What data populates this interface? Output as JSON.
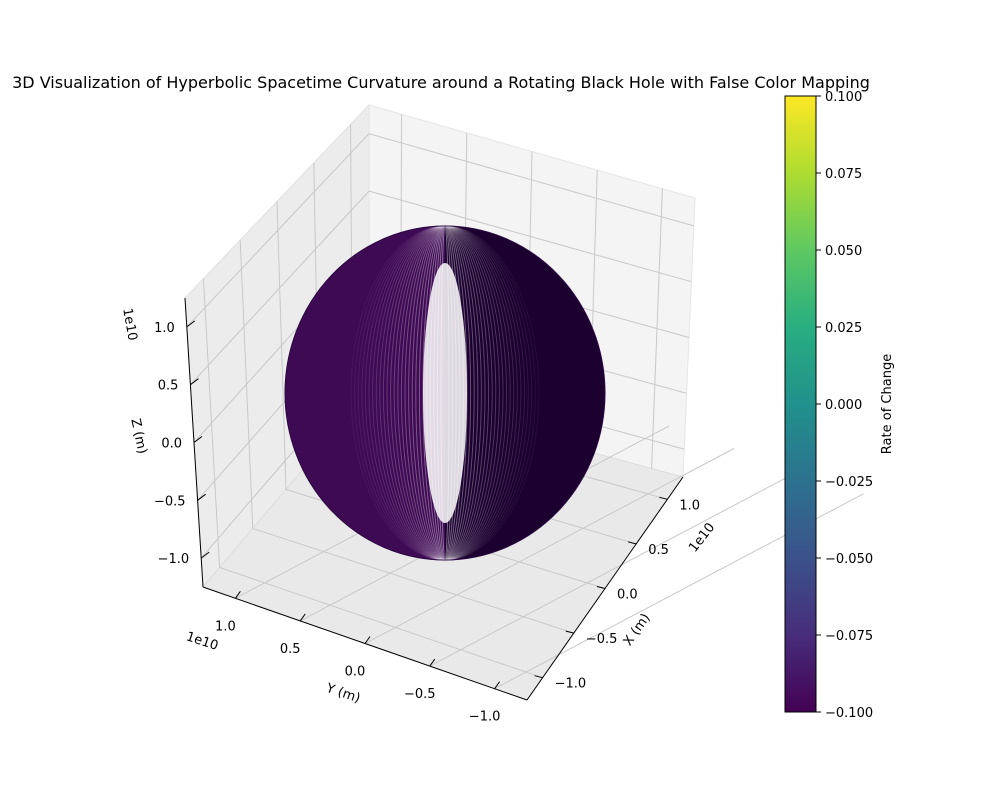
{
  "chart_data": {
    "type": "surface3d",
    "title": "3D Visualization of Hyperbolic Spacetime Curvature around a Rotating Black Hole with False Color Mapping",
    "x_axis": {
      "label": "X (m)",
      "offset_text": "1e10",
      "ticks": [
        "−1.0",
        "−0.5",
        "0.0",
        "0.5",
        "1.0"
      ],
      "values": [
        -1.0,
        -0.5,
        0.0,
        0.5,
        1.0
      ]
    },
    "y_axis": {
      "label": "Y (m)",
      "offset_text": "1e10",
      "ticks": [
        "1.0",
        "0.5",
        "0.0",
        "−0.5",
        "−1.0"
      ],
      "values": [
        1.0,
        0.5,
        0.0,
        -0.5,
        -1.0
      ]
    },
    "z_axis": {
      "label": "Z (m)",
      "offset_text": "1e10",
      "ticks": [
        "1.0",
        "0.5",
        "0.0",
        "−0.5",
        "−1.0"
      ],
      "values": [
        1.0,
        0.5,
        0.0,
        -0.5,
        -1.0
      ]
    },
    "surface": {
      "shape": "sphere",
      "radius": 1.0,
      "color_left": "#3f0a54",
      "color_right": "#1c0030",
      "edge_color": "#2a0740"
    },
    "colorbar": {
      "label": "Rate of Change",
      "colormap": "viridis",
      "ticks": [
        "0.100",
        "0.075",
        "0.050",
        "0.025",
        "0.000",
        "−0.025",
        "−0.050",
        "−0.075",
        "−0.100"
      ],
      "values": [
        0.1,
        0.075,
        0.05,
        0.025,
        0.0,
        -0.025,
        -0.05,
        -0.075,
        -0.1
      ],
      "range": [
        -0.1,
        0.1
      ]
    },
    "grid": true
  }
}
